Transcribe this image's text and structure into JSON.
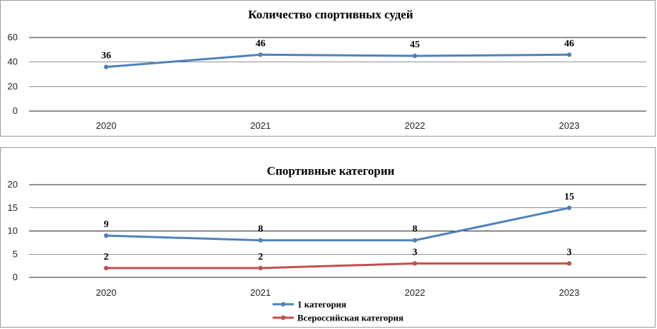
{
  "chart_data": [
    {
      "type": "line",
      "title": "Количество спортивных судей",
      "categories": [
        "2020",
        "2021",
        "2022",
        "2023"
      ],
      "ylim": [
        0,
        60
      ],
      "yticks": [
        0,
        20,
        40,
        60
      ],
      "grid": true,
      "legend": "none",
      "series": [
        {
          "values": [
            36,
            46,
            45,
            46
          ],
          "color": "#4f81bd"
        }
      ]
    },
    {
      "type": "line",
      "title": "Спортивные категории",
      "categories": [
        "2020",
        "2021",
        "2022",
        "2023"
      ],
      "ylim": [
        0,
        20
      ],
      "yticks": [
        0,
        5,
        10,
        15,
        20
      ],
      "grid": true,
      "legend": "bottom",
      "series": [
        {
          "name": "1 категория",
          "values": [
            9,
            8,
            8,
            15
          ],
          "color": "#4f81bd"
        },
        {
          "name": "Всероссийская категория",
          "values": [
            2,
            2,
            3,
            3
          ],
          "color": "#c0504d"
        }
      ]
    }
  ]
}
